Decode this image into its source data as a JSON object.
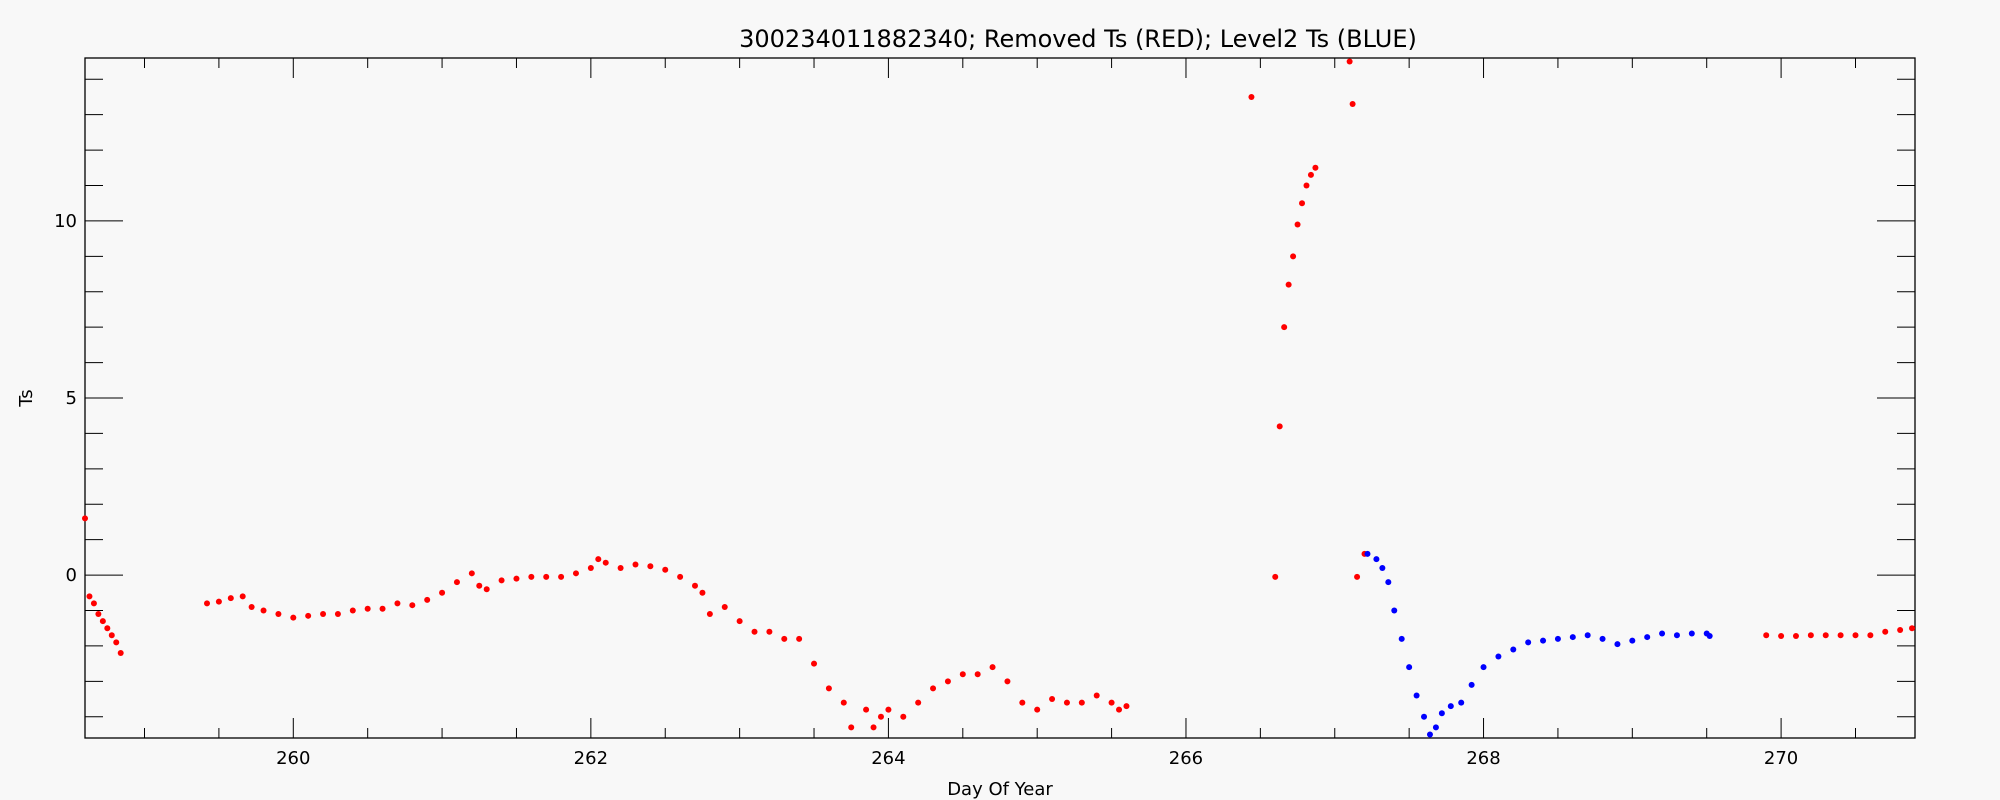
{
  "chart_data": {
    "type": "scatter",
    "title": "300234011882340; Removed Ts (RED); Level2 Ts (BLUE)",
    "xlabel": "Day Of Year",
    "ylabel": "Ts",
    "xlim": [
      258.6,
      270.9
    ],
    "ylim": [
      -4.6,
      14.6
    ],
    "x_ticks": [
      260,
      262,
      264,
      266,
      268,
      270
    ],
    "x_tick_labels": [
      "260",
      "262",
      "264",
      "266",
      "268",
      "270"
    ],
    "y_ticks": [
      0,
      5,
      10
    ],
    "y_tick_labels": [
      "0",
      "5",
      "10"
    ],
    "grid": false,
    "legend": "none",
    "series": [
      {
        "color": "#ff0000",
        "points": [
          [
            258.6,
            1.6
          ],
          [
            258.63,
            -0.6
          ],
          [
            258.66,
            -0.8
          ],
          [
            258.69,
            -1.1
          ],
          [
            258.72,
            -1.3
          ],
          [
            258.75,
            -1.5
          ],
          [
            258.78,
            -1.7
          ],
          [
            258.81,
            -1.9
          ],
          [
            258.84,
            -2.2
          ],
          [
            259.42,
            -0.8
          ],
          [
            259.5,
            -0.75
          ],
          [
            259.58,
            -0.65
          ],
          [
            259.66,
            -0.6
          ],
          [
            259.72,
            -0.9
          ],
          [
            259.8,
            -1.0
          ],
          [
            259.9,
            -1.1
          ],
          [
            260.0,
            -1.2
          ],
          [
            260.1,
            -1.15
          ],
          [
            260.2,
            -1.1
          ],
          [
            260.3,
            -1.1
          ],
          [
            260.4,
            -1.0
          ],
          [
            260.5,
            -0.95
          ],
          [
            260.6,
            -0.95
          ],
          [
            260.7,
            -0.8
          ],
          [
            260.8,
            -0.85
          ],
          [
            260.9,
            -0.7
          ],
          [
            261.0,
            -0.5
          ],
          [
            261.1,
            -0.2
          ],
          [
            261.2,
            0.05
          ],
          [
            261.25,
            -0.3
          ],
          [
            261.3,
            -0.4
          ],
          [
            261.4,
            -0.15
          ],
          [
            261.5,
            -0.1
          ],
          [
            261.6,
            -0.05
          ],
          [
            261.7,
            -0.05
          ],
          [
            261.8,
            -0.05
          ],
          [
            261.9,
            0.05
          ],
          [
            262.0,
            0.2
          ],
          [
            262.05,
            0.45
          ],
          [
            262.1,
            0.35
          ],
          [
            262.2,
            0.2
          ],
          [
            262.3,
            0.3
          ],
          [
            262.4,
            0.25
          ],
          [
            262.5,
            0.15
          ],
          [
            262.6,
            -0.05
          ],
          [
            262.7,
            -0.3
          ],
          [
            262.75,
            -0.5
          ],
          [
            262.8,
            -1.1
          ],
          [
            262.9,
            -0.9
          ],
          [
            263.0,
            -1.3
          ],
          [
            263.1,
            -1.6
          ],
          [
            263.2,
            -1.6
          ],
          [
            263.3,
            -1.8
          ],
          [
            263.4,
            -1.8
          ],
          [
            263.5,
            -2.5
          ],
          [
            263.6,
            -3.2
          ],
          [
            263.7,
            -3.6
          ],
          [
            263.75,
            -4.3
          ],
          [
            263.85,
            -3.8
          ],
          [
            263.9,
            -4.3
          ],
          [
            263.95,
            -4.0
          ],
          [
            264.0,
            -3.8
          ],
          [
            264.1,
            -4.0
          ],
          [
            264.2,
            -3.6
          ],
          [
            264.3,
            -3.2
          ],
          [
            264.4,
            -3.0
          ],
          [
            264.5,
            -2.8
          ],
          [
            264.6,
            -2.8
          ],
          [
            264.7,
            -2.6
          ],
          [
            264.8,
            -3.0
          ],
          [
            264.9,
            -3.6
          ],
          [
            265.0,
            -3.8
          ],
          [
            265.1,
            -3.5
          ],
          [
            265.2,
            -3.6
          ],
          [
            265.3,
            -3.6
          ],
          [
            265.4,
            -3.4
          ],
          [
            265.5,
            -3.6
          ],
          [
            265.55,
            -3.8
          ],
          [
            265.6,
            -3.7
          ],
          [
            266.44,
            13.5
          ],
          [
            266.6,
            -0.05
          ],
          [
            266.63,
            4.2
          ],
          [
            266.66,
            7.0
          ],
          [
            266.69,
            8.2
          ],
          [
            266.72,
            9.0
          ],
          [
            266.75,
            9.9
          ],
          [
            266.78,
            10.5
          ],
          [
            266.81,
            11.0
          ],
          [
            266.84,
            11.3
          ],
          [
            266.87,
            11.5
          ],
          [
            267.1,
            14.5
          ],
          [
            267.12,
            13.3
          ],
          [
            267.15,
            -0.05
          ],
          [
            267.2,
            0.6
          ],
          [
            269.9,
            -1.7
          ],
          [
            270.0,
            -1.72
          ],
          [
            270.1,
            -1.72
          ],
          [
            270.2,
            -1.7
          ],
          [
            270.3,
            -1.7
          ],
          [
            270.4,
            -1.7
          ],
          [
            270.5,
            -1.7
          ],
          [
            270.6,
            -1.7
          ],
          [
            270.7,
            -1.6
          ],
          [
            270.8,
            -1.55
          ],
          [
            270.88,
            -1.5
          ]
        ]
      },
      {
        "color": "#0000ff",
        "points": [
          [
            267.22,
            0.6
          ],
          [
            267.28,
            0.45
          ],
          [
            267.32,
            0.2
          ],
          [
            267.36,
            -0.2
          ],
          [
            267.4,
            -1.0
          ],
          [
            267.45,
            -1.8
          ],
          [
            267.5,
            -2.6
          ],
          [
            267.55,
            -3.4
          ],
          [
            267.6,
            -4.0
          ],
          [
            267.64,
            -4.5
          ],
          [
            267.68,
            -4.3
          ],
          [
            267.72,
            -3.9
          ],
          [
            267.78,
            -3.7
          ],
          [
            267.85,
            -3.6
          ],
          [
            267.92,
            -3.1
          ],
          [
            268.0,
            -2.6
          ],
          [
            268.1,
            -2.3
          ],
          [
            268.2,
            -2.1
          ],
          [
            268.3,
            -1.9
          ],
          [
            268.4,
            -1.85
          ],
          [
            268.5,
            -1.8
          ],
          [
            268.6,
            -1.75
          ],
          [
            268.7,
            -1.7
          ],
          [
            268.8,
            -1.8
          ],
          [
            268.9,
            -1.95
          ],
          [
            269.0,
            -1.85
          ],
          [
            269.1,
            -1.75
          ],
          [
            269.2,
            -1.65
          ],
          [
            269.3,
            -1.7
          ],
          [
            269.4,
            -1.65
          ],
          [
            269.5,
            -1.65
          ],
          [
            269.52,
            -1.72
          ]
        ]
      }
    ]
  }
}
